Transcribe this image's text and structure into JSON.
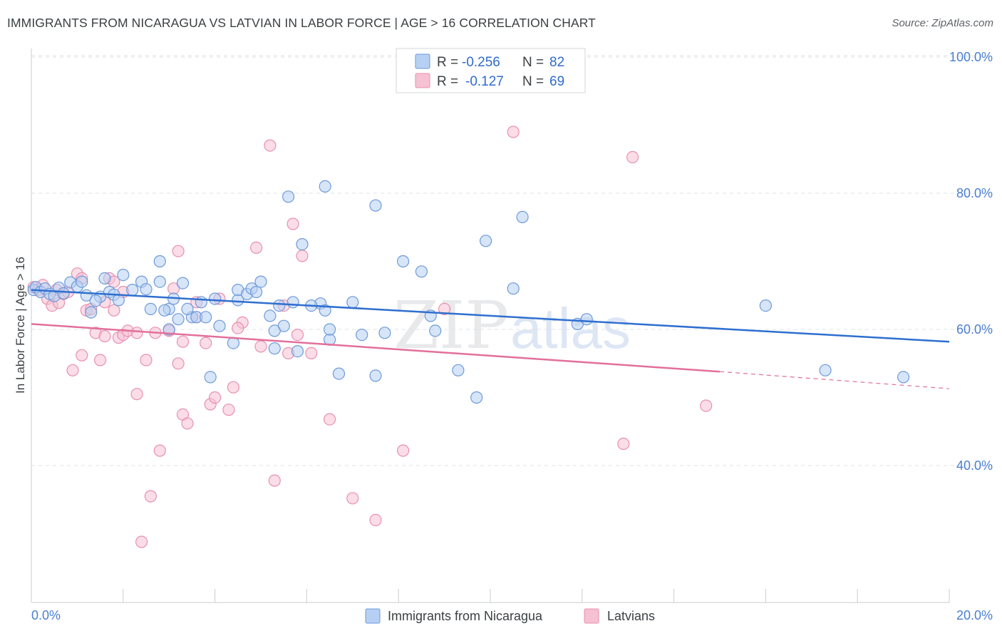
{
  "header": {
    "title": "IMMIGRANTS FROM NICARAGUA VS LATVIAN IN LABOR FORCE | AGE > 16 CORRELATION CHART",
    "source": "Source: ZipAtlas.com"
  },
  "legend": {
    "r_label": "R =",
    "n_label": "N =",
    "rows": [
      {
        "r": "-0.256",
        "n": "82"
      },
      {
        "r": "-0.127",
        "n": "69"
      }
    ]
  },
  "watermark": {
    "zip": "ZIP",
    "atlas": "atlas"
  },
  "colors": {
    "blue_fill": "#b6d0f3",
    "blue_stroke": "#6e9ad9",
    "blue_line": "#2f6fcf",
    "pink_fill": "#f6c1d3",
    "pink_stroke": "#e890b0",
    "pink_line": "#e2709a",
    "grid": "#dde1e6",
    "tick_text": "#4a7fd0"
  },
  "chart_data": {
    "type": "scatter",
    "title": "IMMIGRANTS FROM NICARAGUA VS LATVIAN IN LABOR FORCE | AGE > 16 CORRELATION CHART",
    "xlabel": "",
    "ylabel": "In Labor Force | Age > 16",
    "xlim": [
      0,
      20
    ],
    "ylim": [
      20,
      102
    ],
    "x_tick_labels": [
      "0.0%",
      "20.0%"
    ],
    "y_ticks": [
      40,
      60,
      80,
      100
    ],
    "y_tick_labels": [
      "40.0%",
      "60.0%",
      "80.0%",
      "100.0%"
    ],
    "legend_position": "top-center",
    "series": [
      {
        "name": "Immigrants from Nicaragua",
        "color": "#b6d0f3",
        "r": -0.256,
        "n": 82,
        "trend": {
          "x": [
            0,
            20
          ],
          "y": [
            65.8,
            58.2
          ]
        },
        "points": [
          [
            0.05,
            65.8
          ],
          [
            0.1,
            66.2
          ],
          [
            0.2,
            65.5
          ],
          [
            0.3,
            66.0
          ],
          [
            0.4,
            65.2
          ],
          [
            0.5,
            64.9
          ],
          [
            0.6,
            66.1
          ],
          [
            0.7,
            65.3
          ],
          [
            0.85,
            66.9
          ],
          [
            1.0,
            66.3
          ],
          [
            1.1,
            67.0
          ],
          [
            1.2,
            65.0
          ],
          [
            1.3,
            62.5
          ],
          [
            1.5,
            64.8
          ],
          [
            1.6,
            67.5
          ],
          [
            1.7,
            65.5
          ],
          [
            1.8,
            65.1
          ],
          [
            1.9,
            64.3
          ],
          [
            2.0,
            68.0
          ],
          [
            2.2,
            65.8
          ],
          [
            2.4,
            67.0
          ],
          [
            2.5,
            65.9
          ],
          [
            2.6,
            63.0
          ],
          [
            2.8,
            67.0
          ],
          [
            2.8,
            70.0
          ],
          [
            3.0,
            60.0
          ],
          [
            3.0,
            63.0
          ],
          [
            3.1,
            64.5
          ],
          [
            3.2,
            61.5
          ],
          [
            3.3,
            66.8
          ],
          [
            3.5,
            61.8
          ],
          [
            3.6,
            61.8
          ],
          [
            3.7,
            64.0
          ],
          [
            3.8,
            61.8
          ],
          [
            3.9,
            53.0
          ],
          [
            4.0,
            64.5
          ],
          [
            4.1,
            60.5
          ],
          [
            4.5,
            64.3
          ],
          [
            4.4,
            58.0
          ],
          [
            4.5,
            65.8
          ],
          [
            4.7,
            65.2
          ],
          [
            4.8,
            66.0
          ],
          [
            4.9,
            65.5
          ],
          [
            5.0,
            67.0
          ],
          [
            5.2,
            62.0
          ],
          [
            5.3,
            57.2
          ],
          [
            5.4,
            63.5
          ],
          [
            5.5,
            60.5
          ],
          [
            5.6,
            79.5
          ],
          [
            5.7,
            64.0
          ],
          [
            5.8,
            56.8
          ],
          [
            5.9,
            72.5
          ],
          [
            6.3,
            63.8
          ],
          [
            6.4,
            62.8
          ],
          [
            6.4,
            81.0
          ],
          [
            6.5,
            58.5
          ],
          [
            6.5,
            60.0
          ],
          [
            6.7,
            53.5
          ],
          [
            7.0,
            64.0
          ],
          [
            7.2,
            59.2
          ],
          [
            7.5,
            53.2
          ],
          [
            7.5,
            78.2
          ],
          [
            7.7,
            59.5
          ],
          [
            8.1,
            70.0
          ],
          [
            8.5,
            68.5
          ],
          [
            8.7,
            62.0
          ],
          [
            8.8,
            59.8
          ],
          [
            9.3,
            54.0
          ],
          [
            9.9,
            73.0
          ],
          [
            9.7,
            50.0
          ],
          [
            10.5,
            66.0
          ],
          [
            10.7,
            76.5
          ],
          [
            11.9,
            60.8
          ],
          [
            12.1,
            61.5
          ],
          [
            16.0,
            63.5
          ],
          [
            17.3,
            54.0
          ],
          [
            19.0,
            53.0
          ],
          [
            6.1,
            63.5
          ],
          [
            5.3,
            59.8
          ],
          [
            3.4,
            63.0
          ],
          [
            2.9,
            62.8
          ],
          [
            1.4,
            64.2
          ]
        ]
      },
      {
        "name": "Latvians",
        "color": "#f6c1d3",
        "r": -0.127,
        "n": 69,
        "trend": {
          "x": [
            0,
            15
          ],
          "y": [
            60.8,
            53.8
          ]
        },
        "trend_dashed": {
          "x": [
            15,
            20
          ],
          "y": [
            53.8,
            51.3
          ]
        },
        "points": [
          [
            0.05,
            66.2
          ],
          [
            0.15,
            65.8
          ],
          [
            0.25,
            66.5
          ],
          [
            0.35,
            64.5
          ],
          [
            0.45,
            63.5
          ],
          [
            0.55,
            65.8
          ],
          [
            0.6,
            63.9
          ],
          [
            0.7,
            65.2
          ],
          [
            0.8,
            65.5
          ],
          [
            0.9,
            54.0
          ],
          [
            1.0,
            68.2
          ],
          [
            1.1,
            67.5
          ],
          [
            1.1,
            56.2
          ],
          [
            1.2,
            62.8
          ],
          [
            1.3,
            63.0
          ],
          [
            1.4,
            59.5
          ],
          [
            1.5,
            55.5
          ],
          [
            1.6,
            64.0
          ],
          [
            1.7,
            67.5
          ],
          [
            1.8,
            67.0
          ],
          [
            1.8,
            62.8
          ],
          [
            1.9,
            58.8
          ],
          [
            2.0,
            59.2
          ],
          [
            2.0,
            65.5
          ],
          [
            2.1,
            59.8
          ],
          [
            2.3,
            50.5
          ],
          [
            2.3,
            59.5
          ],
          [
            2.4,
            28.8
          ],
          [
            2.5,
            55.5
          ],
          [
            2.6,
            35.5
          ],
          [
            2.7,
            59.5
          ],
          [
            2.8,
            42.2
          ],
          [
            3.0,
            59.8
          ],
          [
            3.1,
            66.0
          ],
          [
            3.2,
            71.5
          ],
          [
            3.2,
            55.0
          ],
          [
            3.3,
            47.5
          ],
          [
            3.4,
            46.2
          ],
          [
            3.6,
            64.0
          ],
          [
            3.6,
            61.8
          ],
          [
            3.8,
            58.0
          ],
          [
            3.9,
            49.0
          ],
          [
            4.0,
            50.0
          ],
          [
            4.1,
            64.5
          ],
          [
            4.3,
            48.2
          ],
          [
            4.4,
            51.5
          ],
          [
            4.6,
            61.0
          ],
          [
            4.9,
            72.0
          ],
          [
            5.0,
            57.5
          ],
          [
            5.2,
            87.0
          ],
          [
            5.3,
            37.8
          ],
          [
            5.5,
            63.5
          ],
          [
            5.6,
            56.5
          ],
          [
            5.7,
            75.5
          ],
          [
            5.8,
            59.2
          ],
          [
            5.9,
            70.8
          ],
          [
            6.1,
            56.5
          ],
          [
            6.5,
            46.8
          ],
          [
            7.0,
            35.2
          ],
          [
            7.5,
            32.0
          ],
          [
            8.1,
            42.2
          ],
          [
            9.0,
            63.0
          ],
          [
            10.5,
            89.0
          ],
          [
            12.9,
            43.2
          ],
          [
            13.1,
            85.3
          ],
          [
            14.7,
            48.8
          ],
          [
            4.5,
            60.2
          ],
          [
            3.3,
            58.2
          ],
          [
            1.6,
            59.0
          ]
        ]
      }
    ]
  },
  "bottom_legend": {
    "items": [
      "Immigrants from Nicaragua",
      "Latvians"
    ]
  }
}
